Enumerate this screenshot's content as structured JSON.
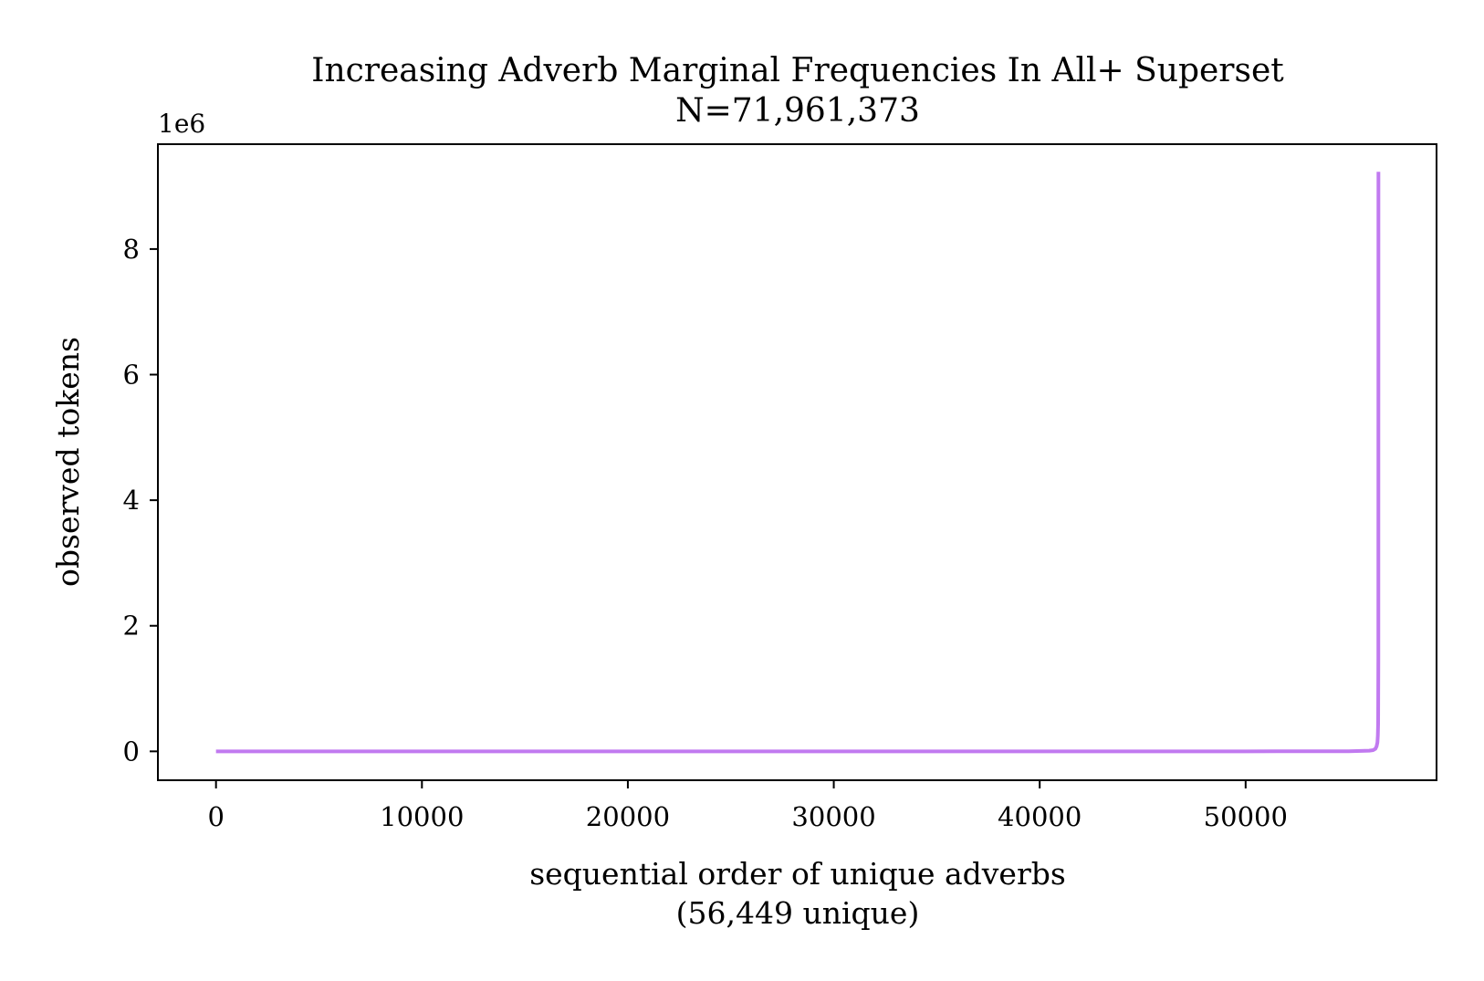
{
  "chart_data": {
    "type": "line",
    "title": "Increasing Adverb Marginal Frequencies In All+ Superset",
    "subtitle": "N=71,961,373",
    "xlabel": "sequential order of unique adverbs",
    "xlabel_sub": "(56,449 unique)",
    "ylabel": "observed tokens",
    "y_offset_text": "1e6",
    "xlim": [
      -2822,
      59271
    ],
    "ylim": [
      -0.46,
      9.67
    ],
    "x_ticks": [
      0,
      10000,
      20000,
      30000,
      40000,
      50000
    ],
    "x_tick_labels": [
      "0",
      "10000",
      "20000",
      "30000",
      "40000",
      "50000"
    ],
    "y_ticks": [
      0,
      2,
      4,
      6,
      8
    ],
    "y_tick_labels": [
      "0",
      "2",
      "4",
      "6",
      "8"
    ],
    "grid": false,
    "legend": false,
    "series": [
      {
        "color": "#c17af0",
        "x": [
          0,
          10000,
          20000,
          30000,
          40000,
          50000,
          55000,
          56000,
          56200,
          56300,
          56360,
          56400,
          56420,
          56435,
          56445,
          56449
        ],
        "y": [
          0.0,
          0.0,
          0.0,
          0.0,
          0.0,
          0.0001,
          0.002,
          0.01,
          0.02,
          0.04,
          0.08,
          0.14,
          0.25,
          0.45,
          1.5,
          9.23
        ]
      }
    ]
  }
}
